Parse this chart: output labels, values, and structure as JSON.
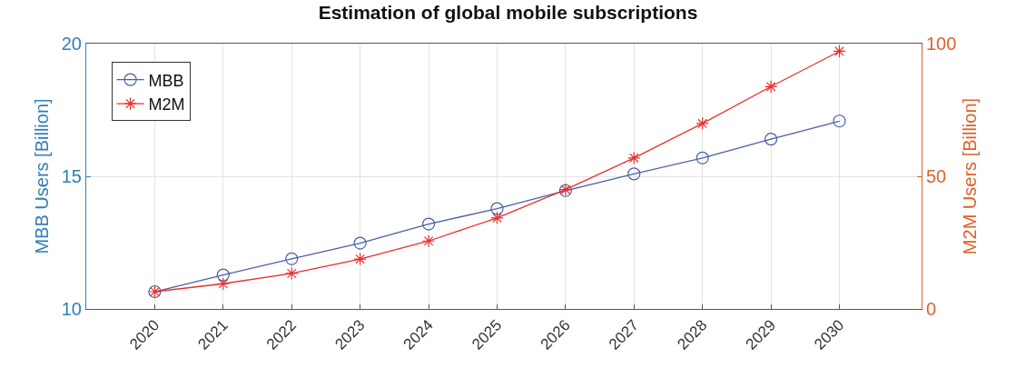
{
  "chart_data": {
    "type": "line",
    "title": "Estimation of global mobile subscriptions",
    "ylabel": "MBB Users [Billion]",
    "y2label": "M2M Users [Billion]",
    "x": [
      2020,
      2021,
      2022,
      2023,
      2024,
      2025,
      2026,
      2027,
      2028,
      2029,
      2030
    ],
    "xlim": [
      2019,
      2031.2
    ],
    "xticks": [
      2020,
      2021,
      2022,
      2023,
      2024,
      2025,
      2026,
      2027,
      2028,
      2029,
      2030
    ],
    "ylim": [
      10,
      20
    ],
    "yticks": [
      10,
      15,
      20
    ],
    "y2lim": [
      0,
      100
    ],
    "y2ticks": [
      0,
      50,
      100
    ],
    "grid": true,
    "legend": "top left",
    "line_style": "solid",
    "series": [
      {
        "name": "MBB",
        "color": "#4b5fa6",
        "marker": "circle",
        "values": [
          10.65,
          11.28,
          11.89,
          12.48,
          13.2,
          13.78,
          14.46,
          15.09,
          15.69,
          16.4,
          17.08
        ]
      },
      {
        "name": "M2M",
        "color": "#e8302a",
        "marker": "cross",
        "axis": "y2",
        "values": [
          6.5,
          9.5,
          13.4,
          18.8,
          25.6,
          34.3,
          45,
          56.9,
          69.9,
          83.8,
          97.1
        ]
      }
    ]
  }
}
